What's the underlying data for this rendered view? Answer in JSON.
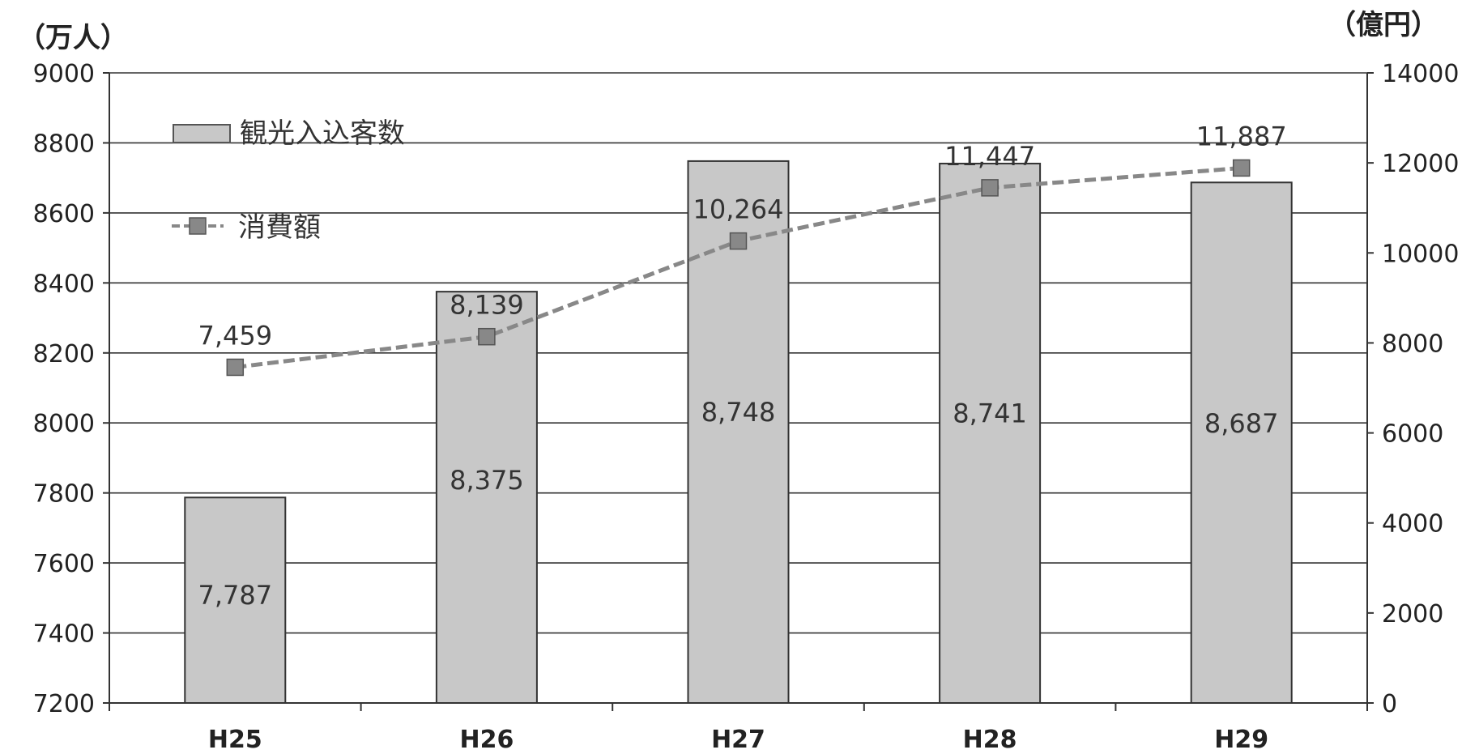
{
  "chart_data": {
    "type": "bar",
    "categories": [
      "H25",
      "H26",
      "H27",
      "H28",
      "H29"
    ],
    "series": [
      {
        "name": "観光入込客数",
        "type": "bar",
        "axis": "left",
        "values": [
          7787,
          8375,
          8748,
          8741,
          8687
        ],
        "labels": [
          "7,787",
          "8,375",
          "8,748",
          "8,741",
          "8,687"
        ],
        "color": "#c8c8c8"
      },
      {
        "name": "消費額",
        "type": "line",
        "axis": "right",
        "values": [
          7459,
          8139,
          10264,
          11447,
          11887
        ],
        "labels": [
          "7,459",
          "8,139",
          "10,264",
          "11,447",
          "11,887"
        ],
        "color": "#888888"
      }
    ],
    "y_left": {
      "unit": "（万人）",
      "min": 7200,
      "max": 9000,
      "ticks": [
        "9000",
        "8800",
        "8600",
        "8400",
        "8200",
        "8000",
        "7800",
        "7600",
        "7400",
        "7200"
      ]
    },
    "y_right": {
      "unit": "（億円）",
      "min": 0,
      "max": 14000,
      "ticks": [
        "14000",
        "12000",
        "10000",
        "8000",
        "6000",
        "4000",
        "2000",
        "0"
      ]
    },
    "grid": true,
    "legend_position": "top-left"
  }
}
